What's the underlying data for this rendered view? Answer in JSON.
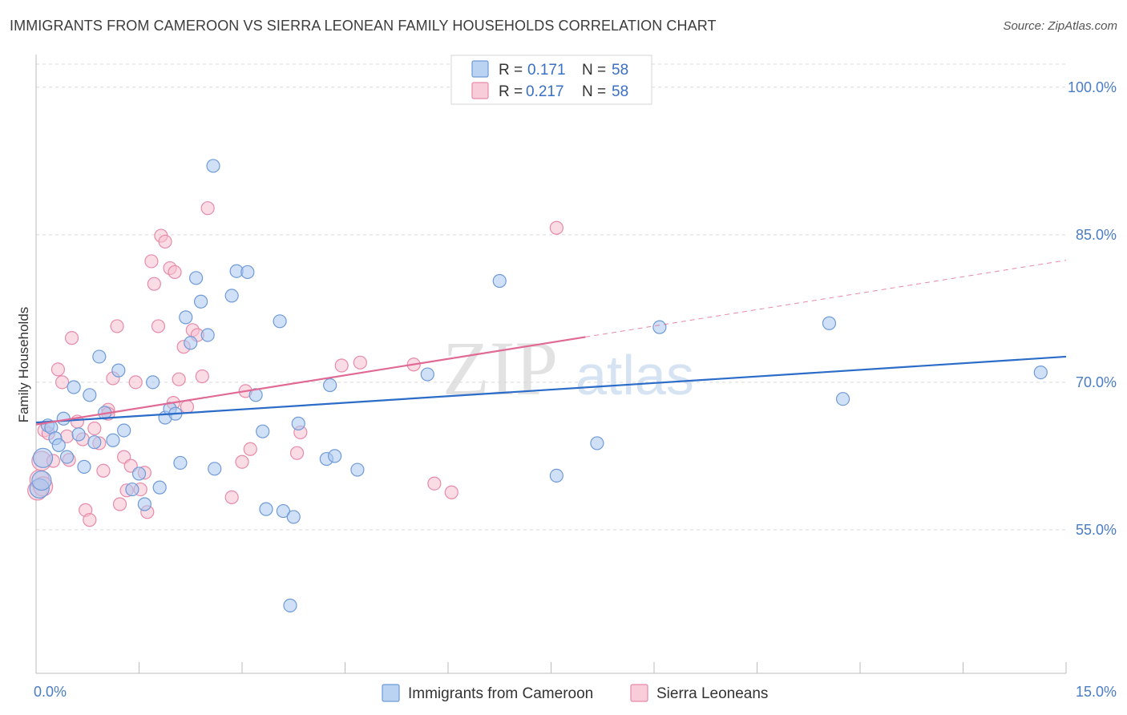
{
  "title": "IMMIGRANTS FROM CAMEROON VS SIERRA LEONEAN FAMILY HOUSEHOLDS CORRELATION CHART",
  "source": "Source: ZipAtlas.com",
  "watermark": {
    "zip": "ZIP",
    "atlas": "atlas"
  },
  "colors": {
    "blue_fill": "#aac8f0",
    "blue_stroke": "#6f9ad8",
    "blue_line": "#2b6cc8",
    "pink_fill": "#f6bfd0",
    "pink_stroke": "#e88aa8",
    "pink_line": "#e06a94",
    "grid": "#d9d9d9",
    "tick_label": "#4a7cc5"
  },
  "chart_data": {
    "type": "scatter",
    "title": "IMMIGRANTS FROM CAMEROON VS SIERRA LEONEAN FAMILY HOUSEHOLDS CORRELATION CHART",
    "xlabel": "",
    "ylabel": "Family Households",
    "xlim": [
      0,
      15
    ],
    "ylim": [
      40.4,
      103
    ],
    "x_tick_labels": [
      "0.0%",
      "15.0%"
    ],
    "y_ticks": [
      55,
      70,
      85,
      100
    ],
    "y_tick_labels": [
      "55.0%",
      "70.0%",
      "85.0%",
      "100.0%"
    ],
    "grid": true,
    "legend": {
      "position": "top-center",
      "entries": [
        {
          "r_label": "R =",
          "r_value": "0.171",
          "n_label": "N =",
          "n_value": "58"
        },
        {
          "r_label": "R =",
          "r_value": "0.217",
          "n_label": "N =",
          "n_value": "58"
        }
      ]
    },
    "series": [
      {
        "name": "Immigrants from Cameroon",
        "color": "blue",
        "trend": {
          "x": [
            0.0,
            15.0
          ],
          "y": [
            65.9,
            72.6
          ]
        },
        "points": [
          [
            0.05,
            59.2
          ],
          [
            0.08,
            60.0
          ],
          [
            0.1,
            62.3
          ],
          [
            0.17,
            65.6
          ],
          [
            0.22,
            65.4
          ],
          [
            0.28,
            64.3
          ],
          [
            0.33,
            63.6
          ],
          [
            0.4,
            66.3
          ],
          [
            0.45,
            62.4
          ],
          [
            0.55,
            69.5
          ],
          [
            0.62,
            64.7
          ],
          [
            0.7,
            61.4
          ],
          [
            0.78,
            68.7
          ],
          [
            0.85,
            63.9
          ],
          [
            0.92,
            72.6
          ],
          [
            1.0,
            66.9
          ],
          [
            1.12,
            64.1
          ],
          [
            1.2,
            71.2
          ],
          [
            1.28,
            65.1
          ],
          [
            1.4,
            59.1
          ],
          [
            1.5,
            60.7
          ],
          [
            1.58,
            57.6
          ],
          [
            1.7,
            70.0
          ],
          [
            1.8,
            59.3
          ],
          [
            1.88,
            66.4
          ],
          [
            1.95,
            67.3
          ],
          [
            2.03,
            66.8
          ],
          [
            2.1,
            61.8
          ],
          [
            2.18,
            76.6
          ],
          [
            2.25,
            74.0
          ],
          [
            2.33,
            80.6
          ],
          [
            2.4,
            78.2
          ],
          [
            2.5,
            74.8
          ],
          [
            2.58,
            92.0
          ],
          [
            2.6,
            61.2
          ],
          [
            2.85,
            78.8
          ],
          [
            2.92,
            81.3
          ],
          [
            3.08,
            81.2
          ],
          [
            3.2,
            68.7
          ],
          [
            3.3,
            65.0
          ],
          [
            3.35,
            57.1
          ],
          [
            3.55,
            76.2
          ],
          [
            3.6,
            56.9
          ],
          [
            3.7,
            47.3
          ],
          [
            3.75,
            56.3
          ],
          [
            3.82,
            65.8
          ],
          [
            4.23,
            62.2
          ],
          [
            4.28,
            69.7
          ],
          [
            4.35,
            62.5
          ],
          [
            4.68,
            61.1
          ],
          [
            5.7,
            70.8
          ],
          [
            6.75,
            80.3
          ],
          [
            7.58,
            60.5
          ],
          [
            8.17,
            63.8
          ],
          [
            9.08,
            75.6
          ],
          [
            11.55,
            76.0
          ],
          [
            11.75,
            68.3
          ],
          [
            14.63,
            71.0
          ]
        ]
      },
      {
        "name": "Sierra Leoneans",
        "color": "pink",
        "trend": {
          "x": [
            0.0,
            8.0
          ],
          "y": [
            65.7,
            74.6
          ]
        },
        "trend_extension": {
          "x": [
            8.0,
            15.0
          ],
          "y": [
            74.6,
            82.4
          ]
        },
        "points": [
          [
            0.02,
            59.0
          ],
          [
            0.05,
            60.1
          ],
          [
            0.08,
            62.0
          ],
          [
            0.12,
            65.1
          ],
          [
            0.18,
            64.8
          ],
          [
            0.25,
            62.0
          ],
          [
            0.32,
            71.3
          ],
          [
            0.38,
            70.0
          ],
          [
            0.45,
            64.5
          ],
          [
            0.52,
            74.5
          ],
          [
            0.6,
            66.0
          ],
          [
            0.68,
            64.2
          ],
          [
            0.72,
            57.0
          ],
          [
            0.78,
            56.0
          ],
          [
            0.85,
            65.3
          ],
          [
            0.92,
            63.8
          ],
          [
            0.98,
            61.0
          ],
          [
            1.05,
            67.2
          ],
          [
            1.12,
            70.4
          ],
          [
            1.18,
            75.7
          ],
          [
            1.22,
            57.6
          ],
          [
            1.28,
            62.4
          ],
          [
            1.32,
            59.0
          ],
          [
            1.38,
            61.5
          ],
          [
            1.45,
            70.0
          ],
          [
            1.52,
            59.1
          ],
          [
            1.58,
            60.8
          ],
          [
            1.62,
            56.8
          ],
          [
            1.68,
            82.3
          ],
          [
            1.72,
            80.0
          ],
          [
            1.78,
            75.7
          ],
          [
            1.82,
            84.9
          ],
          [
            1.88,
            84.3
          ],
          [
            1.95,
            81.6
          ],
          [
            2.02,
            81.2
          ],
          [
            2.08,
            70.3
          ],
          [
            2.15,
            73.6
          ],
          [
            2.2,
            67.5
          ],
          [
            2.28,
            75.3
          ],
          [
            2.35,
            74.8
          ],
          [
            2.42,
            70.6
          ],
          [
            2.5,
            87.7
          ],
          [
            2.85,
            58.3
          ],
          [
            3.0,
            61.9
          ],
          [
            3.05,
            69.1
          ],
          [
            3.12,
            63.2
          ],
          [
            3.8,
            62.8
          ],
          [
            3.85,
            64.9
          ],
          [
            4.45,
            71.7
          ],
          [
            4.72,
            72.0
          ],
          [
            5.5,
            71.8
          ],
          [
            5.8,
            59.7
          ],
          [
            6.05,
            58.8
          ],
          [
            7.58,
            85.7
          ],
          [
            0.1,
            59.4
          ],
          [
            0.48,
            62.1
          ],
          [
            2.0,
            67.9
          ],
          [
            1.05,
            66.8
          ]
        ]
      }
    ],
    "bottom_legend": [
      "Immigrants from Cameroon",
      "Sierra Leoneans"
    ]
  }
}
